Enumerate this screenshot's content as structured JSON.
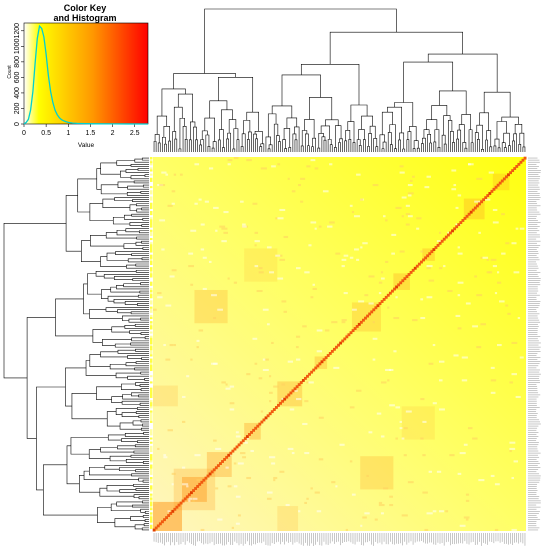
{
  "chart_data": [
    {
      "type": "heatmap",
      "description_kind": "clustered heatmap with row and column dendrograms",
      "n_rows": 180,
      "n_cols": 180,
      "symmetric": true,
      "diagonal": "max",
      "color_scale": [
        "#ffffff",
        "#ffff00",
        "#ff8000",
        "#ff0000"
      ],
      "value_range": [
        0,
        2.8
      ],
      "row_dendrogram": "left",
      "col_dendrogram": "top",
      "row_labels_visible": "illegible",
      "col_labels_visible": "illegible"
    },
    {
      "type": "line",
      "title": "Color Key\nand Histogram",
      "title_lines": [
        "Color Key",
        "and Histogram"
      ],
      "xlabel": "Value",
      "ylabel": "Count",
      "xlim": [
        0,
        2.8
      ],
      "ylim": [
        0,
        1300
      ],
      "x_ticks": [
        "0",
        "0.5",
        "1",
        "1.5",
        "2",
        "2.5"
      ],
      "y_ticks": [
        "0",
        "200",
        "400",
        "600",
        "800",
        "1000",
        "1200"
      ],
      "series": [
        {
          "color": "#00d0d0",
          "x": [
            0.05,
            0.1,
            0.15,
            0.2,
            0.25,
            0.3,
            0.35,
            0.4,
            0.45,
            0.5,
            0.55,
            0.6,
            0.65,
            0.7,
            0.75,
            0.8,
            0.85,
            0.9,
            0.95,
            1.0,
            1.1,
            1.2,
            1.4,
            1.6,
            2.0,
            2.8
          ],
          "y": [
            20,
            60,
            180,
            420,
            780,
            1100,
            1260,
            1230,
            1120,
            900,
            620,
            420,
            280,
            180,
            120,
            80,
            55,
            40,
            30,
            20,
            12,
            8,
            5,
            3,
            1,
            0
          ]
        }
      ]
    }
  ]
}
